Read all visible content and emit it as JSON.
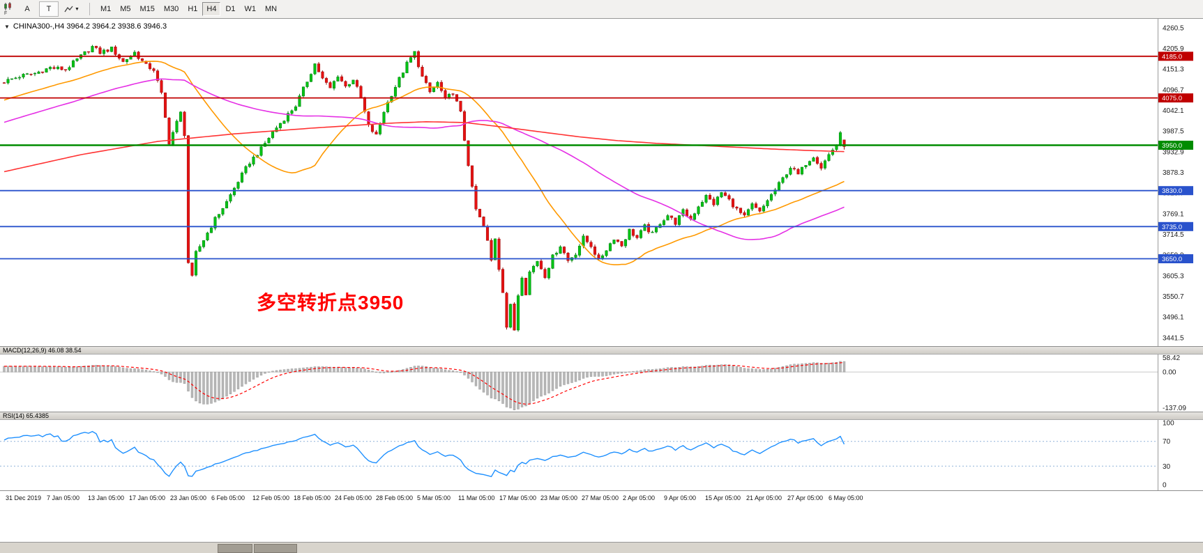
{
  "toolbar": {
    "left_buttons": {
      "chart_f_label": "F",
      "annotation_button": "A",
      "text_button": "T",
      "draw_caret": "▼"
    },
    "timeframes": [
      "M1",
      "M5",
      "M15",
      "M30",
      "H1",
      "H4",
      "D1",
      "W1",
      "MN"
    ],
    "active_timeframe": "H4"
  },
  "chart": {
    "collapse_glyph": "▼",
    "info_line": "CHINA300-,H4  3964.2 3964.2 3938.6 3946.3",
    "annotation_text": "多空转折点3950",
    "annotation_color": "#ff0000"
  },
  "macd": {
    "label": "MACD(12,26,9) 46.08 38.54",
    "axis_labels": [
      "58.42",
      "0.00",
      "-137.09"
    ],
    "fast": 12,
    "slow": 26,
    "signal": 9,
    "histogram_color": "#b8b8b8",
    "signal_color": "#ff0000"
  },
  "rsi": {
    "label": "RSI(14) 65.4385",
    "axis_labels": [
      "100",
      "70",
      "30",
      "0"
    ],
    "period": 14,
    "levels": [
      70,
      30
    ],
    "line_color": "#1e90ff"
  },
  "chart_data": {
    "type": "candlestick",
    "symbol": "CHINA300-",
    "timeframe": "H4",
    "title": "CHINA300-,H4",
    "last_candle": {
      "open": 3964.2,
      "high": 3964.2,
      "low": 3938.6,
      "close": 3946.3
    },
    "num_candles": 220,
    "y_range": [
      3430,
      4273
    ],
    "up_color": "#00c214",
    "down_color": "#e51212",
    "y_axis_labels": [
      "4260.5",
      "4205.9",
      "4151.3",
      "4096.7",
      "4042.1",
      "3987.5",
      "3932.9",
      "3878.3",
      "3823.7",
      "3769.1",
      "3714.5",
      "3659.9",
      "3605.3",
      "3550.7",
      "3496.1",
      "3441.5"
    ],
    "x_axis_labels": [
      "31 Dec 2019",
      "7 Jan 05:00",
      "13 Jan 05:00",
      "17 Jan 05:00",
      "23 Jan 05:00",
      "6 Feb 05:00",
      "12 Feb 05:00",
      "18 Feb 05:00",
      "24 Feb 05:00",
      "28 Feb 05:00",
      "5 Mar 05:00",
      "11 Mar 05:00",
      "17 Mar 05:00",
      "23 Mar 05:00",
      "27 Mar 05:00",
      "2 Apr 05:00",
      "9 Apr 05:00",
      "15 Apr 05:00",
      "21 Apr 05:00",
      "27 Apr 05:00",
      "6 May 05:00"
    ],
    "levels": [
      {
        "price": 4185.0,
        "label": "4185.0",
        "color": "#c00000"
      },
      {
        "price": 4075.0,
        "label": "4075.0",
        "color": "#c00000"
      },
      {
        "price": 3950.0,
        "label": "3950.0",
        "color": "#008c00"
      },
      {
        "price": 3830.0,
        "label": "3830.0",
        "color": "#2952cc"
      },
      {
        "price": 3735.0,
        "label": "3735.0",
        "color": "#2952cc"
      },
      {
        "price": 3650.0,
        "label": "3650.0",
        "color": "#2952cc"
      }
    ],
    "price_keypoints": [
      [
        0,
        4118
      ],
      [
        4,
        4132
      ],
      [
        8,
        4140
      ],
      [
        12,
        4155
      ],
      [
        16,
        4150
      ],
      [
        20,
        4185
      ],
      [
        23,
        4210
      ],
      [
        25,
        4195
      ],
      [
        28,
        4205
      ],
      [
        31,
        4170
      ],
      [
        34,
        4195
      ],
      [
        37,
        4160
      ],
      [
        39,
        4150
      ],
      [
        41,
        4085
      ],
      [
        43,
        3958
      ],
      [
        45,
        4010
      ],
      [
        46,
        4035
      ],
      [
        47,
        3980
      ],
      [
        48,
        3640
      ],
      [
        49,
        3600
      ],
      [
        50,
        3665
      ],
      [
        52,
        3700
      ],
      [
        55,
        3755
      ],
      [
        58,
        3800
      ],
      [
        61,
        3855
      ],
      [
        64,
        3905
      ],
      [
        67,
        3940
      ],
      [
        70,
        3985
      ],
      [
        73,
        4020
      ],
      [
        76,
        4055
      ],
      [
        79,
        4120
      ],
      [
        81,
        4165
      ],
      [
        83,
        4125
      ],
      [
        85,
        4100
      ],
      [
        87,
        4135
      ],
      [
        89,
        4105
      ],
      [
        91,
        4125
      ],
      [
        93,
        4075
      ],
      [
        95,
        4000
      ],
      [
        97,
        3975
      ],
      [
        99,
        4040
      ],
      [
        101,
        4085
      ],
      [
        103,
        4125
      ],
      [
        105,
        4165
      ],
      [
        107,
        4195
      ],
      [
        109,
        4130
      ],
      [
        111,
        4090
      ],
      [
        113,
        4115
      ],
      [
        115,
        4070
      ],
      [
        117,
        4090
      ],
      [
        119,
        4035
      ],
      [
        120,
        3965
      ],
      [
        121,
        3900
      ],
      [
        122,
        3835
      ],
      [
        123,
        3780
      ],
      [
        125,
        3735
      ],
      [
        126,
        3695
      ],
      [
        127,
        3645
      ],
      [
        128,
        3705
      ],
      [
        129,
        3625
      ],
      [
        130,
        3565
      ],
      [
        131,
        3470
      ],
      [
        132,
        3525
      ],
      [
        133,
        3462
      ],
      [
        134,
        3555
      ],
      [
        135,
        3605
      ],
      [
        136,
        3560
      ],
      [
        137,
        3615
      ],
      [
        139,
        3645
      ],
      [
        141,
        3605
      ],
      [
        143,
        3655
      ],
      [
        145,
        3685
      ],
      [
        147,
        3645
      ],
      [
        149,
        3665
      ],
      [
        151,
        3705
      ],
      [
        153,
        3685
      ],
      [
        155,
        3645
      ],
      [
        157,
        3675
      ],
      [
        159,
        3705
      ],
      [
        161,
        3685
      ],
      [
        163,
        3725
      ],
      [
        165,
        3705
      ],
      [
        167,
        3735
      ],
      [
        169,
        3715
      ],
      [
        171,
        3745
      ],
      [
        173,
        3765
      ],
      [
        175,
        3745
      ],
      [
        177,
        3775
      ],
      [
        179,
        3755
      ],
      [
        181,
        3790
      ],
      [
        183,
        3815
      ],
      [
        185,
        3795
      ],
      [
        187,
        3825
      ],
      [
        189,
        3805
      ],
      [
        191,
        3780
      ],
      [
        193,
        3760
      ],
      [
        195,
        3792
      ],
      [
        197,
        3772
      ],
      [
        199,
        3805
      ],
      [
        201,
        3832
      ],
      [
        203,
        3862
      ],
      [
        205,
        3892
      ],
      [
        207,
        3872
      ],
      [
        209,
        3902
      ],
      [
        211,
        3922
      ],
      [
        213,
        3892
      ],
      [
        215,
        3925
      ],
      [
        217,
        3952
      ],
      [
        218,
        3978
      ],
      [
        219,
        3946.3
      ]
    ],
    "moving_averages": {
      "fast_color": "#ff9900",
      "medium_color": "#e530e5",
      "slow_color": "#ff3333",
      "slow_keypoints": [
        [
          0,
          3880
        ],
        [
          20,
          3925
        ],
        [
          40,
          3960
        ],
        [
          60,
          3980
        ],
        [
          80,
          3995
        ],
        [
          100,
          4008
        ],
        [
          110,
          4012
        ],
        [
          120,
          4010
        ],
        [
          130,
          3998
        ],
        [
          140,
          3985
        ],
        [
          150,
          3972
        ],
        [
          160,
          3962
        ],
        [
          170,
          3955
        ],
        [
          180,
          3950
        ],
        [
          190,
          3945
        ],
        [
          200,
          3940
        ],
        [
          210,
          3936
        ],
        [
          219,
          3933
        ]
      ]
    }
  }
}
